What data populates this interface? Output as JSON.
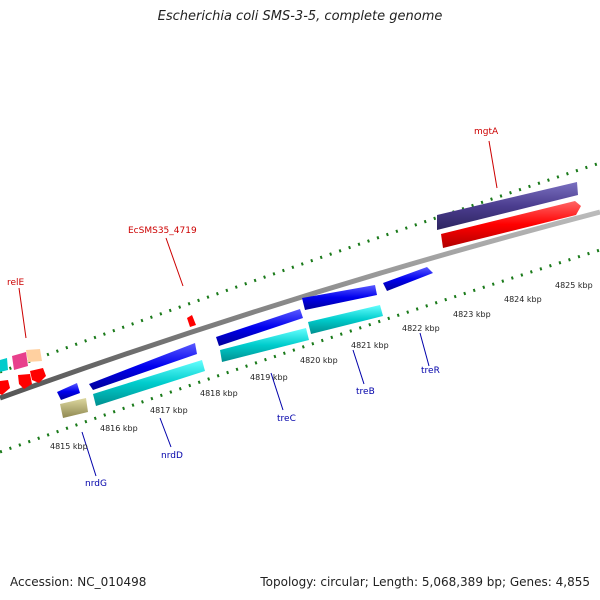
{
  "title": "Escherichia coli SMS-3-5, complete genome",
  "accession": "Accession: NC_010498",
  "topology": "Topology: circular; Length: 5,068,389 bp; Genes: 4,855",
  "kbp_labels": [
    "4815 kbp",
    "4816 kbp",
    "4817 kbp",
    "4818 kbp",
    "4819 kbp",
    "4820 kbp",
    "4821 kbp",
    "4822 kbp",
    "4823 kbp",
    "4824 kbp",
    "4825 kbp"
  ],
  "gene_labels": [
    {
      "name": "mgtA",
      "color": "#cc0000"
    },
    {
      "name": "EcSMS35_4719",
      "color": "#cc0000"
    },
    {
      "name": "relE",
      "color": "#cc0000"
    },
    {
      "name": "nrdG",
      "color": "#0000aa"
    },
    {
      "name": "nrdD",
      "color": "#0000aa"
    },
    {
      "name": "treC",
      "color": "#0000aa"
    },
    {
      "name": "treB",
      "color": "#0000aa"
    },
    {
      "name": "treR",
      "color": "#0000aa"
    }
  ],
  "colors": {
    "backbone": "#888888",
    "tick": "#1a7a1a",
    "forward_cds": "#ff0000",
    "reverse_cds": "#0000ee",
    "reverse_pts": "#00cccc",
    "mgta_track": "#4b3d8f",
    "nrdG_track": "#b8b070"
  }
}
